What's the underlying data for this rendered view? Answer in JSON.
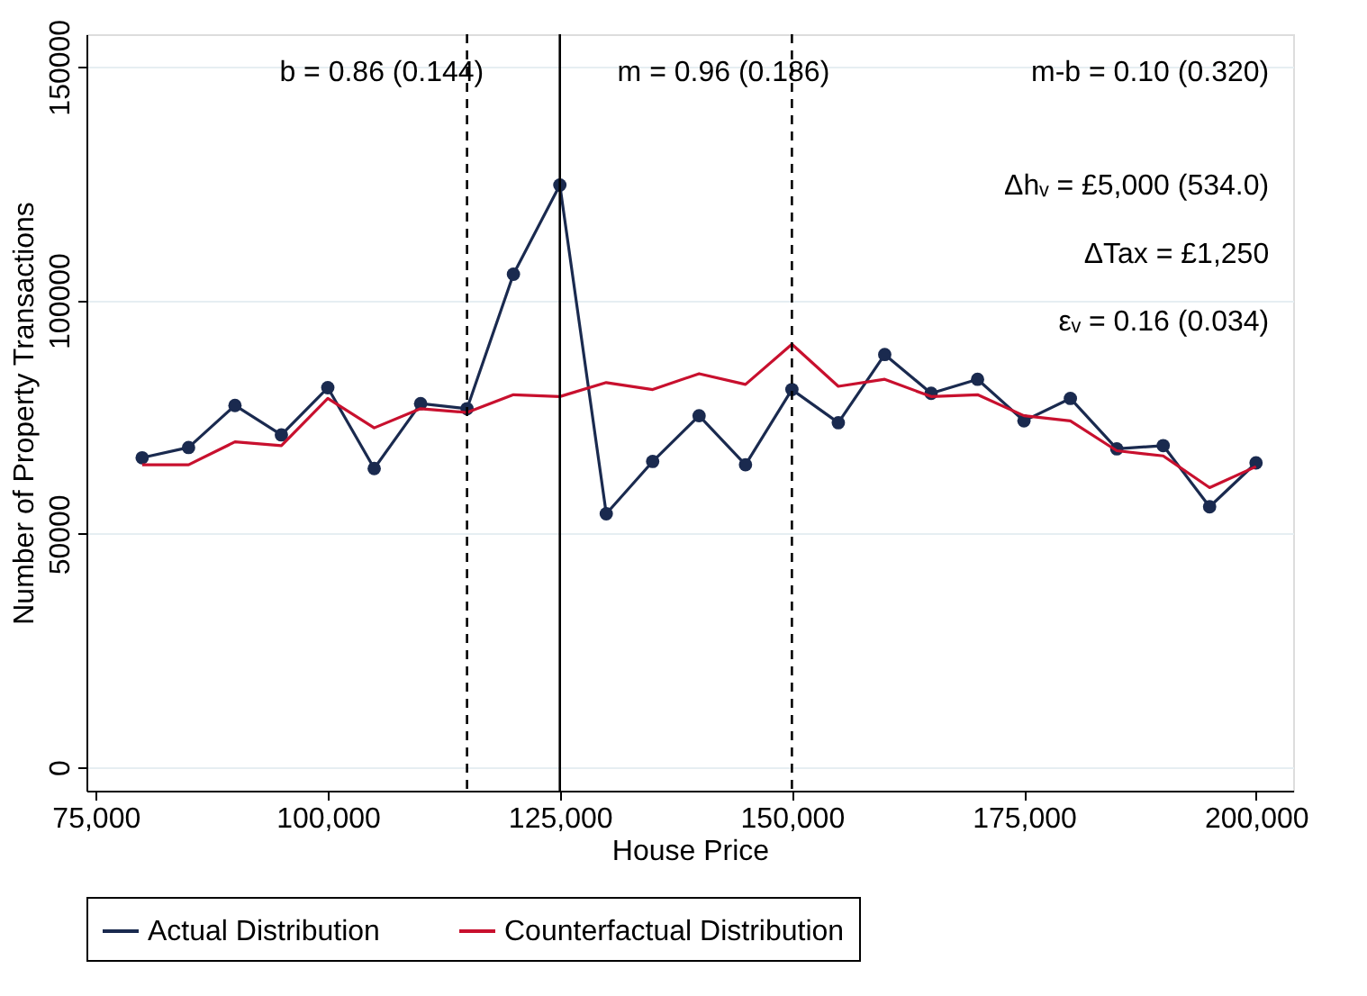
{
  "chart_data": {
    "type": "line",
    "xlabel": "House Price",
    "ylabel": "Number of Property Transactions",
    "x": [
      80000,
      85000,
      90000,
      95000,
      100000,
      105000,
      110000,
      115000,
      120000,
      125000,
      130000,
      135000,
      140000,
      145000,
      150000,
      155000,
      160000,
      165000,
      170000,
      175000,
      180000,
      185000,
      190000,
      195000,
      200000
    ],
    "series": [
      {
        "name": "Actual Distribution",
        "color": "#1a2a4f",
        "marker": "circle",
        "values": [
          66300,
          68500,
          77500,
          71200,
          81300,
          64000,
          77900,
          76800,
          105600,
          124700,
          54300,
          65500,
          75300,
          64800,
          80900,
          73800,
          88400,
          80100,
          83100,
          74200,
          79000,
          68200,
          68900,
          55800,
          65200
        ]
      },
      {
        "name": "Counterfactual Distribution",
        "color": "#c8102e",
        "marker": "none",
        "values": [
          64800,
          64800,
          69700,
          68900,
          79000,
          72700,
          76800,
          76000,
          79800,
          79400,
          82400,
          80900,
          84300,
          82000,
          90600,
          81600,
          83100,
          79400,
          79800,
          75300,
          74200,
          67800,
          66700,
          59900,
          64400
        ]
      }
    ],
    "xlim": [
      74000,
      204000
    ],
    "xticks": [
      {
        "value": 75000,
        "label": "75,000"
      },
      {
        "value": 100000,
        "label": "100,000"
      },
      {
        "value": 125000,
        "label": "125,000"
      },
      {
        "value": 150000,
        "label": "150,000"
      },
      {
        "value": 175000,
        "label": "175,000"
      },
      {
        "value": 200000,
        "label": "200,000"
      }
    ],
    "ylim": [
      -5000,
      157000
    ],
    "yticks": [
      0,
      50000,
      100000,
      150000
    ],
    "ref_lines": [
      {
        "axis": "x",
        "value": 115000,
        "line_style": "dashed",
        "color": "#000000"
      },
      {
        "axis": "x",
        "value": 125000,
        "line_style": "solid",
        "color": "#000000"
      },
      {
        "axis": "x",
        "value": 150000,
        "line_style": "dashed",
        "color": "#000000"
      }
    ],
    "annotations": [
      "b = 0.86 (0.144)",
      "m = 0.96 (0.186)",
      "m-b = 0.10 (0.320)",
      "Δhᵥ = £5,000 (534.0)",
      "ΔTax = £1,250",
      "εᵥ = 0.16 (0.034)"
    ],
    "grid": "y",
    "legend": "bottom",
    "line_style": "solid"
  }
}
